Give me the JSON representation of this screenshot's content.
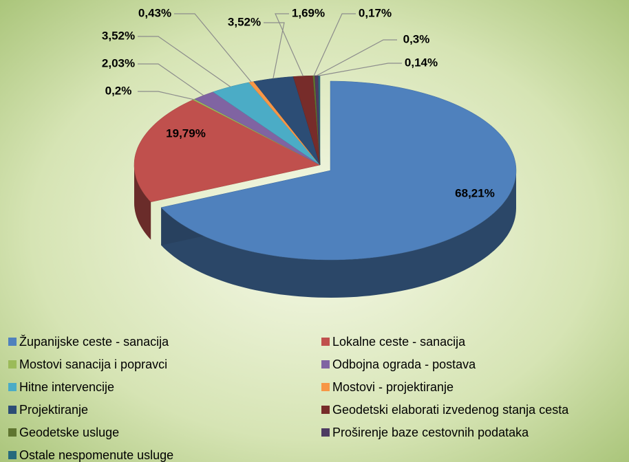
{
  "chart_data": {
    "type": "pie",
    "categories": [
      "Županijske ceste - sanacija",
      "Lokalne ceste - sanacija",
      "Mostovi sanacija i popravci",
      "Odbojna ograda - postava",
      "Hitne intervencije",
      "Mostovi - projektiranje",
      "Projektiranje",
      "Geodetski elaborati izvedenog stanja cesta",
      "Geodetske usluge",
      "Proširenje baze cestovnih podataka",
      "Ostale nespomenute usluge"
    ],
    "values": [
      68.21,
      19.79,
      0.2,
      2.03,
      3.52,
      0.43,
      3.52,
      1.69,
      0.17,
      0.3,
      0.14
    ],
    "value_labels": [
      "68,21%",
      "19,79%",
      "0,2%",
      "2,03%",
      "3,52%",
      "0,43%",
      "3,52%",
      "1,69%",
      "0,17%",
      "0,3%",
      "0,14%"
    ],
    "colors": [
      "#4f81bd",
      "#c0504d",
      "#9bbb59",
      "#8064a2",
      "#4bacc6",
      "#f79646",
      "#2c4d75",
      "#772c2a",
      "#5f7530",
      "#4d3b62",
      "#276a7c"
    ],
    "legend": "bottom"
  }
}
